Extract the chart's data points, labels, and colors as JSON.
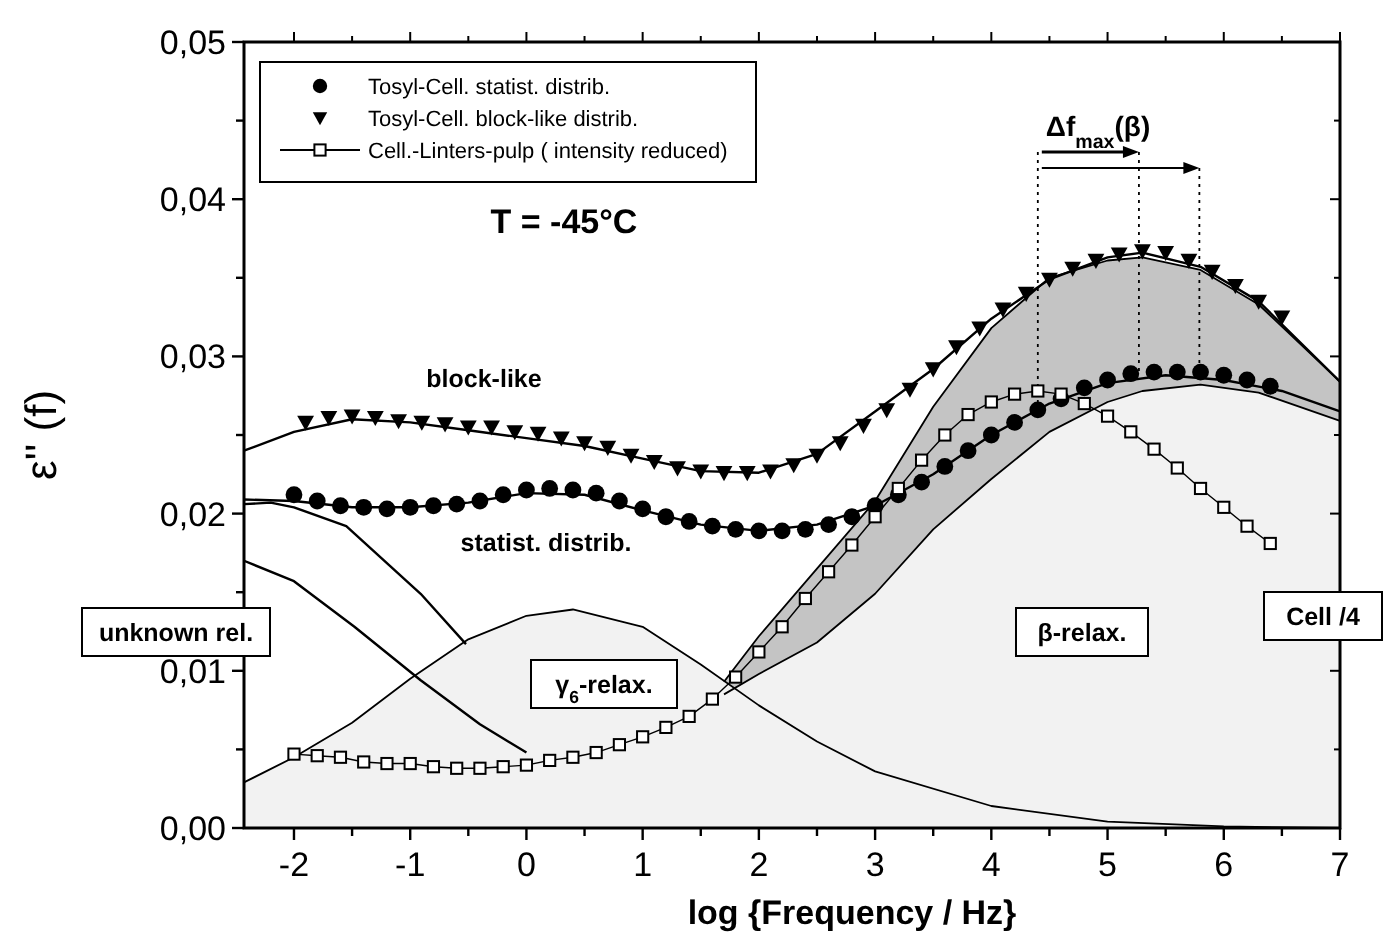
{
  "chart_data": {
    "type": "scatter",
    "xlabel": "log {Frequency / Hz}",
    "ylabel": "ε'' (f)",
    "xlim": [
      -2.43,
      7
    ],
    "ylim": [
      0,
      0.05
    ],
    "xticks": [
      -2,
      {
        "value": -1.5,
        "label": null
      },
      -1,
      {
        "value": -0.5,
        "label": null
      },
      0,
      {
        "value": 0.5,
        "label": null
      },
      1,
      {
        "value": 1.5,
        "label": null
      },
      2,
      {
        "value": 2.5,
        "label": null
      },
      3,
      {
        "value": 3.5,
        "label": null
      },
      4,
      {
        "value": 4.5,
        "label": null
      },
      5,
      {
        "value": 5.5,
        "label": null
      },
      6,
      {
        "value": 6.5,
        "label": null
      },
      7
    ],
    "yticks": [
      {
        "value": 0,
        "label": "0,00"
      },
      {
        "value": 0.005,
        "label": null
      },
      {
        "value": 0.01,
        "label": "0,01"
      },
      {
        "value": 0.015,
        "label": null
      },
      {
        "value": 0.02,
        "label": "0,02"
      },
      {
        "value": 0.025,
        "label": null
      },
      {
        "value": 0.03,
        "label": "0,03"
      },
      {
        "value": 0.035,
        "label": null
      },
      {
        "value": 0.04,
        "label": "0,04"
      },
      {
        "value": 0.045,
        "label": null
      },
      {
        "value": 0.05,
        "label": "0,05"
      }
    ],
    "legend": "top left",
    "grid": false,
    "series": [
      {
        "type": "area",
        "color": "#c4c4c4",
        "x": [
          1.7,
          2,
          2.5,
          3,
          3.5,
          4,
          4.5,
          5,
          5.3,
          5.8,
          6.3,
          7
        ],
        "values": [
          0.0093,
          0.0122,
          0.0165,
          0.0208,
          0.0268,
          0.0318,
          0.035,
          0.0361,
          0.0363,
          0.0355,
          0.0333,
          0.0284
        ]
      },
      {
        "type": "area",
        "color": "#f2f2f2",
        "x": [
          -2.43,
          -2,
          -1.5,
          -1,
          -0.5,
          0,
          0.4,
          1,
          1.5,
          2,
          2.5,
          3,
          4,
          5,
          6,
          7
        ],
        "values": [
          0.0029,
          0.0045,
          0.0067,
          0.0095,
          0.012,
          0.0135,
          0.0139,
          0.0128,
          0.0104,
          0.0078,
          0.0055,
          0.0036,
          0.0014,
          0.0004,
          0.0001,
          0
        ]
      },
      {
        "type": "area",
        "color": "#f2f2f2",
        "x": [
          1.7,
          2,
          2.5,
          3,
          3.5,
          4,
          4.5,
          5,
          5.3,
          5.8,
          6.3,
          7
        ],
        "values": [
          0.0085,
          0.0098,
          0.0118,
          0.0149,
          0.019,
          0.0222,
          0.0252,
          0.0271,
          0.0278,
          0.0282,
          0.0277,
          0.0259
        ]
      },
      {
        "type": "line",
        "color": "#000000",
        "x": [
          -2.43,
          -2,
          -1.5,
          -1,
          -0.5,
          0,
          0.5,
          1,
          1.5,
          2,
          2.5,
          3,
          3.5,
          4,
          4.5,
          5,
          5.3,
          5.8,
          6.3,
          7
        ],
        "values": [
          0.024,
          0.0252,
          0.026,
          0.0258,
          0.0253,
          0.0248,
          0.0243,
          0.0235,
          0.0227,
          0.0226,
          0.0238,
          0.0265,
          0.0292,
          0.0324,
          0.0349,
          0.0363,
          0.0366,
          0.0357,
          0.0335,
          0.0284
        ]
      },
      {
        "type": "line",
        "color": "#000000",
        "x": [
          -2.43,
          -2,
          -1.5,
          -1,
          -0.5,
          0,
          0.5,
          1,
          1.5,
          2,
          2.5,
          3,
          3.5,
          4,
          4.5,
          5,
          5.5,
          6,
          6.5,
          7
        ],
        "values": [
          0.0209,
          0.0208,
          0.0204,
          0.0204,
          0.0207,
          0.0213,
          0.0212,
          0.0202,
          0.0193,
          0.0189,
          0.0193,
          0.0205,
          0.0225,
          0.025,
          0.027,
          0.0283,
          0.0288,
          0.0285,
          0.0278,
          0.0265
        ]
      },
      {
        "type": "line",
        "color": "#000000",
        "x": [
          -2.43,
          -2.2,
          -2,
          -1.55,
          -0.91,
          -0.52
        ],
        "values": [
          0.0206,
          0.0207,
          0.0204,
          0.0192,
          0.0149,
          0.0117
        ]
      },
      {
        "type": "line",
        "color": "#000000",
        "x": [
          -2.43,
          -2,
          -1.48,
          -0.91,
          -0.4,
          0
        ],
        "values": [
          0.017,
          0.0157,
          0.0128,
          0.0094,
          0.0066,
          0.0048
        ]
      },
      {
        "name": "Tosyl-Cell. statist. distrib.",
        "type": "scatter",
        "marker": "circle",
        "color": "#000000",
        "x": [
          -2,
          -1.8,
          -1.6,
          -1.4,
          -1.2,
          -1,
          -0.8,
          -0.6,
          -0.4,
          -0.2,
          0,
          0.2,
          0.4,
          0.6,
          0.8,
          1,
          1.2,
          1.4,
          1.6,
          1.8,
          2,
          2.2,
          2.4,
          2.6,
          2.8,
          3,
          3.2,
          3.4,
          3.6,
          3.8,
          4,
          4.2,
          4.4,
          4.6,
          4.8,
          5,
          5.2,
          5.4,
          5.6,
          5.8,
          6,
          6.2,
          6.4
        ],
        "values": [
          0.0212,
          0.0208,
          0.0205,
          0.0204,
          0.0203,
          0.0204,
          0.0205,
          0.0206,
          0.0208,
          0.0212,
          0.0215,
          0.0216,
          0.0215,
          0.0213,
          0.0208,
          0.0203,
          0.0198,
          0.0195,
          0.0192,
          0.019,
          0.0189,
          0.0189,
          0.019,
          0.0193,
          0.0198,
          0.0205,
          0.0212,
          0.022,
          0.023,
          0.024,
          0.025,
          0.0258,
          0.0266,
          0.0273,
          0.028,
          0.0285,
          0.0289,
          0.029,
          0.029,
          0.029,
          0.0288,
          0.0285,
          0.0281
        ]
      },
      {
        "name": "Tosyl-Cell. block-like distrib.",
        "type": "scatter",
        "marker": "triangle",
        "color": "#000000",
        "x": [
          -1.9,
          -1.7,
          -1.5,
          -1.3,
          -1.1,
          -0.9,
          -0.7,
          -0.5,
          -0.3,
          -0.1,
          0.1,
          0.3,
          0.5,
          0.7,
          0.9,
          1.1,
          1.3,
          1.5,
          1.7,
          1.9,
          2.1,
          2.3,
          2.5,
          2.7,
          2.9,
          3.1,
          3.3,
          3.5,
          3.7,
          3.9,
          4.1,
          4.3,
          4.5,
          4.7,
          4.9,
          5.1,
          5.3,
          5.5,
          5.7,
          5.9,
          6.1,
          6.3,
          6.5
        ],
        "values": [
          0.0258,
          0.0261,
          0.0262,
          0.0261,
          0.0259,
          0.0258,
          0.0257,
          0.0255,
          0.0255,
          0.0252,
          0.0251,
          0.0248,
          0.0245,
          0.0242,
          0.0237,
          0.0233,
          0.0229,
          0.0227,
          0.0226,
          0.0226,
          0.0227,
          0.0231,
          0.0237,
          0.0245,
          0.0256,
          0.0266,
          0.0279,
          0.0292,
          0.0306,
          0.0318,
          0.033,
          0.034,
          0.0349,
          0.0356,
          0.0361,
          0.0365,
          0.0367,
          0.0366,
          0.0361,
          0.0354,
          0.0345,
          0.0335,
          0.0325
        ]
      },
      {
        "name": "Cell.-Linters-pulp ( intensity reduced)",
        "type": "line",
        "marker": "square",
        "color": "#000000",
        "x": [
          -2,
          -1.8,
          -1.6,
          -1.4,
          -1.2,
          -1,
          -0.8,
          -0.6,
          -0.4,
          -0.2,
          0,
          0.2,
          0.4,
          0.6,
          0.8,
          1,
          1.2,
          1.4,
          1.6,
          1.8,
          2,
          2.2,
          2.4,
          2.6,
          2.8,
          3,
          3.2,
          3.4,
          3.6,
          3.8,
          4,
          4.2,
          4.4,
          4.6,
          4.8,
          5,
          5.2,
          5.4,
          5.6,
          5.8,
          6,
          6.2,
          6.4
        ],
        "values": [
          0.0047,
          0.0046,
          0.0045,
          0.0042,
          0.0041,
          0.0041,
          0.0039,
          0.0038,
          0.0038,
          0.0039,
          0.004,
          0.0043,
          0.0045,
          0.0048,
          0.0053,
          0.0058,
          0.0064,
          0.0071,
          0.0082,
          0.0096,
          0.0112,
          0.0128,
          0.0146,
          0.0163,
          0.018,
          0.0198,
          0.0216,
          0.0234,
          0.025,
          0.0263,
          0.0271,
          0.0276,
          0.0278,
          0.0276,
          0.027,
          0.0262,
          0.0252,
          0.0241,
          0.0229,
          0.0216,
          0.0204,
          0.0192,
          0.0181
        ]
      }
    ],
    "ref_lines": [
      {
        "axis": "x",
        "value": 4.4,
        "line_style": "dotted"
      },
      {
        "axis": "x",
        "value": 5.27,
        "line_style": "dotted"
      },
      {
        "axis": "x",
        "value": 5.79,
        "line_style": "dotted"
      }
    ],
    "annotations": [
      "block-like",
      "statist. distrib.",
      "unknown rel.",
      "γ$_{6}$-relax.",
      "β-relax.",
      "Cell /4",
      "T = -45°C",
      {
        "text": "Δf$_{max}$(β)",
        "x": 4.4,
        "y": 0.0425
      }
    ]
  }
}
